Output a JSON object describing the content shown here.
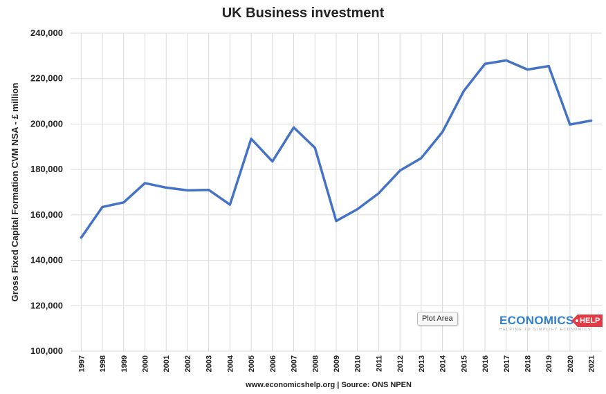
{
  "colors": {
    "line": "#4472C4",
    "grid": "#d9d9d9",
    "logo_blue": "#2f7fd1",
    "logo_red": "#e23b45"
  },
  "tooltip": {
    "text": "Plot Area"
  },
  "logo": {
    "main": "ECONOMICS",
    "tag": "HELP",
    "sub": "HELPING TO SIMPLIFY ECONOMICS"
  },
  "chart_data": {
    "type": "line",
    "title": "UK Business investment",
    "ylabel": "Gross Fixed Capital Formation CVM NSA - £ million",
    "xlabel": "",
    "footer": "www.economicshelp.org | Source: ONS NPEN",
    "ylim": [
      100000,
      240000
    ],
    "yticks": [
      100000,
      120000,
      140000,
      160000,
      180000,
      200000,
      220000,
      240000
    ],
    "ytick_labels": [
      "100,000",
      "120,000",
      "140,000",
      "160,000",
      "180,000",
      "200,000",
      "220,000",
      "240,000"
    ],
    "grid": true,
    "legend": "none",
    "categories": [
      "1997",
      "1998",
      "1999",
      "2000",
      "2001",
      "2002",
      "2003",
      "2004",
      "2005",
      "2006",
      "2007",
      "2008",
      "2009",
      "2010",
      "2011",
      "2012",
      "2013",
      "2014",
      "2015",
      "2016",
      "2017",
      "2018",
      "2019",
      "2020",
      "2021"
    ],
    "series": [
      {
        "values": [
          150000,
          163500,
          165500,
          174000,
          172000,
          170800,
          171000,
          164500,
          193500,
          183500,
          198500,
          189500,
          157300,
          162500,
          169500,
          179500,
          185000,
          196500,
          214500,
          226500,
          228000,
          224000,
          225500,
          199800,
          201500
        ]
      }
    ]
  }
}
